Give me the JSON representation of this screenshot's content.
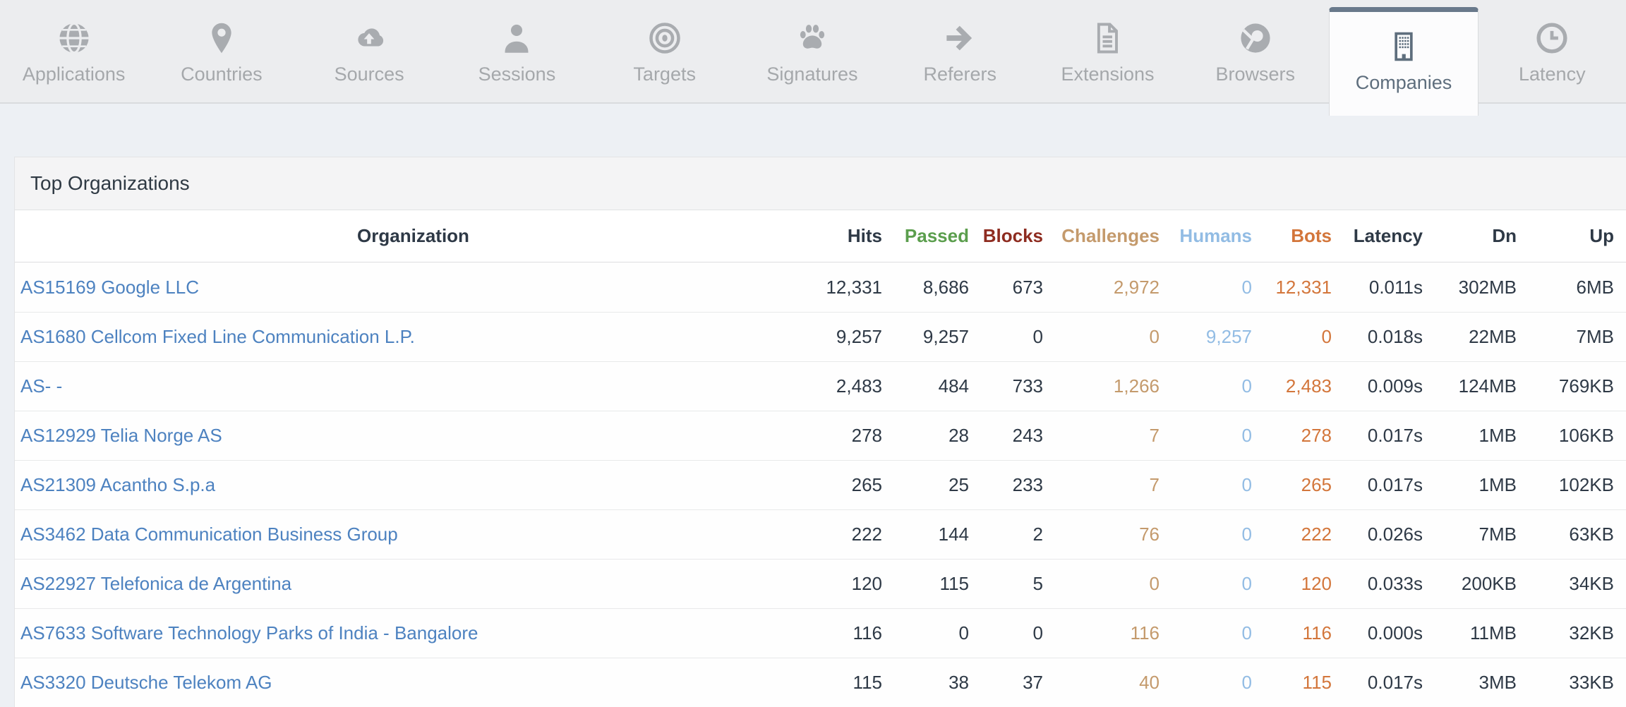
{
  "tabs": [
    {
      "label": "Applications",
      "icon": "globe-icon",
      "active": false
    },
    {
      "label": "Countries",
      "icon": "map-pin-icon",
      "active": false
    },
    {
      "label": "Sources",
      "icon": "cloud-upload-icon",
      "active": false
    },
    {
      "label": "Sessions",
      "icon": "person-icon",
      "active": false
    },
    {
      "label": "Targets",
      "icon": "bullseye-icon",
      "active": false
    },
    {
      "label": "Signatures",
      "icon": "paw-icon",
      "active": false
    },
    {
      "label": "Referers",
      "icon": "arrow-right-icon",
      "active": false
    },
    {
      "label": "Extensions",
      "icon": "document-icon",
      "active": false
    },
    {
      "label": "Browsers",
      "icon": "browser-icon",
      "active": false
    },
    {
      "label": "Companies",
      "icon": "building-icon",
      "active": true
    },
    {
      "label": "Latency",
      "icon": "clock-icon",
      "active": false
    }
  ],
  "panel": {
    "title": "Top Organizations"
  },
  "table": {
    "columns": [
      {
        "key": "org",
        "label": "Organization",
        "header_color": "#2e3946",
        "value_color": "#4d82c0"
      },
      {
        "key": "hits",
        "label": "Hits",
        "header_color": "#2e3946",
        "value_color": "#2e3946"
      },
      {
        "key": "passed",
        "label": "Passed",
        "header_color": "#5b9e4d",
        "value_color": "#2e3946"
      },
      {
        "key": "blocks",
        "label": "Blocks",
        "header_color": "#8e2c20",
        "value_color": "#2e3946"
      },
      {
        "key": "challenges",
        "label": "Challenges",
        "header_color": "#c49a6c",
        "value_color": "#c49a6c"
      },
      {
        "key": "humans",
        "label": "Humans",
        "header_color": "#92bce4",
        "value_color": "#92bce4"
      },
      {
        "key": "bots",
        "label": "Bots",
        "header_color": "#d3763b",
        "value_color": "#d3763b"
      },
      {
        "key": "latency",
        "label": "Latency",
        "header_color": "#2e3946",
        "value_color": "#2e3946"
      },
      {
        "key": "dn",
        "label": "Dn",
        "header_color": "#2e3946",
        "value_color": "#2e3946"
      },
      {
        "key": "up",
        "label": "Up",
        "header_color": "#2e3946",
        "value_color": "#2e3946"
      }
    ],
    "rows": [
      {
        "org": "AS15169 Google LLC",
        "hits": "12,331",
        "passed": "8,686",
        "blocks": "673",
        "challenges": "2,972",
        "humans": "0",
        "bots": "12,331",
        "latency": "0.011s",
        "dn": "302MB",
        "up": "6MB"
      },
      {
        "org": "AS1680 Cellcom Fixed Line Communication L.P.",
        "hits": "9,257",
        "passed": "9,257",
        "blocks": "0",
        "challenges": "0",
        "humans": "9,257",
        "bots": "0",
        "latency": "0.018s",
        "dn": "22MB",
        "up": "7MB"
      },
      {
        "org": "AS- -",
        "hits": "2,483",
        "passed": "484",
        "blocks": "733",
        "challenges": "1,266",
        "humans": "0",
        "bots": "2,483",
        "latency": "0.009s",
        "dn": "124MB",
        "up": "769KB"
      },
      {
        "org": "AS12929 Telia Norge AS",
        "hits": "278",
        "passed": "28",
        "blocks": "243",
        "challenges": "7",
        "humans": "0",
        "bots": "278",
        "latency": "0.017s",
        "dn": "1MB",
        "up": "106KB"
      },
      {
        "org": "AS21309 Acantho S.p.a",
        "hits": "265",
        "passed": "25",
        "blocks": "233",
        "challenges": "7",
        "humans": "0",
        "bots": "265",
        "latency": "0.017s",
        "dn": "1MB",
        "up": "102KB"
      },
      {
        "org": "AS3462 Data Communication Business Group",
        "hits": "222",
        "passed": "144",
        "blocks": "2",
        "challenges": "76",
        "humans": "0",
        "bots": "222",
        "latency": "0.026s",
        "dn": "7MB",
        "up": "63KB"
      },
      {
        "org": "AS22927 Telefonica de Argentina",
        "hits": "120",
        "passed": "115",
        "blocks": "5",
        "challenges": "0",
        "humans": "0",
        "bots": "120",
        "latency": "0.033s",
        "dn": "200KB",
        "up": "34KB"
      },
      {
        "org": "AS7633 Software Technology Parks of India - Bangalore",
        "hits": "116",
        "passed": "0",
        "blocks": "0",
        "challenges": "116",
        "humans": "0",
        "bots": "116",
        "latency": "0.000s",
        "dn": "11MB",
        "up": "32KB"
      },
      {
        "org": "AS3320 Deutsche Telekom AG",
        "hits": "115",
        "passed": "38",
        "blocks": "37",
        "challenges": "40",
        "humans": "0",
        "bots": "115",
        "latency": "0.017s",
        "dn": "3MB",
        "up": "33KB"
      }
    ]
  },
  "colors": {
    "accent_slate": "#69798b",
    "link_blue": "#4d82c0",
    "passed_green": "#5b9e4d",
    "blocks_red": "#8e2c20",
    "challenges_tan": "#c49a6c",
    "humans_blue": "#92bce4",
    "bots_orange": "#d3763b",
    "tab_inactive_gray": "#a5a8ab",
    "bar_background": "#ecedef",
    "page_background": "#edf0f4"
  }
}
